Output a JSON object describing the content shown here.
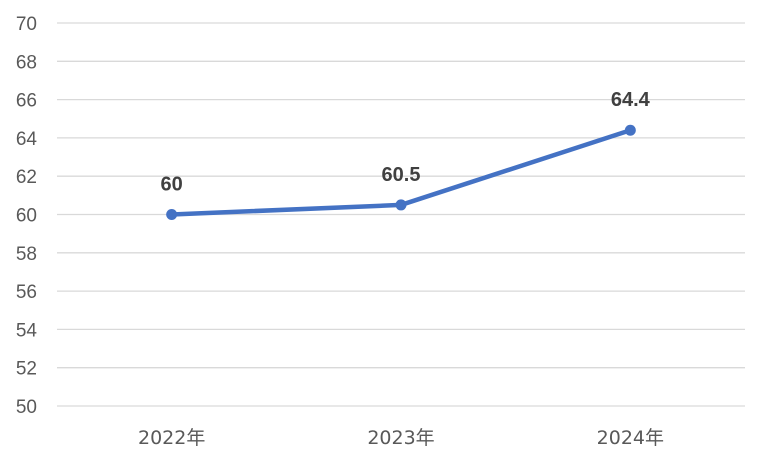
{
  "chart_data": {
    "type": "line",
    "title": "",
    "xlabel": "",
    "ylabel": "",
    "categories": [
      "2022年",
      "2023年",
      "2024年"
    ],
    "series": [
      {
        "values": [
          60,
          60.5,
          64.4
        ],
        "data_labels": [
          "60",
          "60.5",
          "64.4"
        ]
      }
    ],
    "ylim": [
      50,
      70
    ],
    "y_ticks": [
      50,
      52,
      54,
      56,
      58,
      60,
      62,
      64,
      66,
      68,
      70
    ],
    "y_tick_labels": [
      "50",
      "52",
      "54",
      "56",
      "58",
      "60",
      "62",
      "64",
      "66",
      "68",
      "70"
    ],
    "grid": true,
    "legend": "none",
    "colors": {
      "series": "#4472c4",
      "grid": "#d9d9d9",
      "tick_text": "#595959",
      "label_text": "#404040"
    }
  }
}
